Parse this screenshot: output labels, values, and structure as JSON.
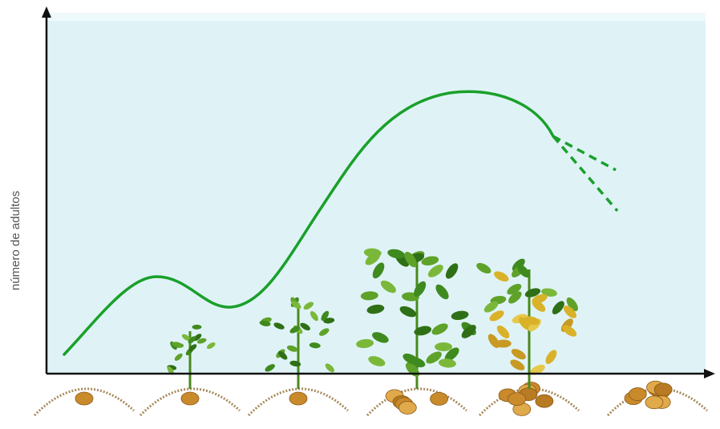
{
  "y_axis_label": "número de adultos"
}
